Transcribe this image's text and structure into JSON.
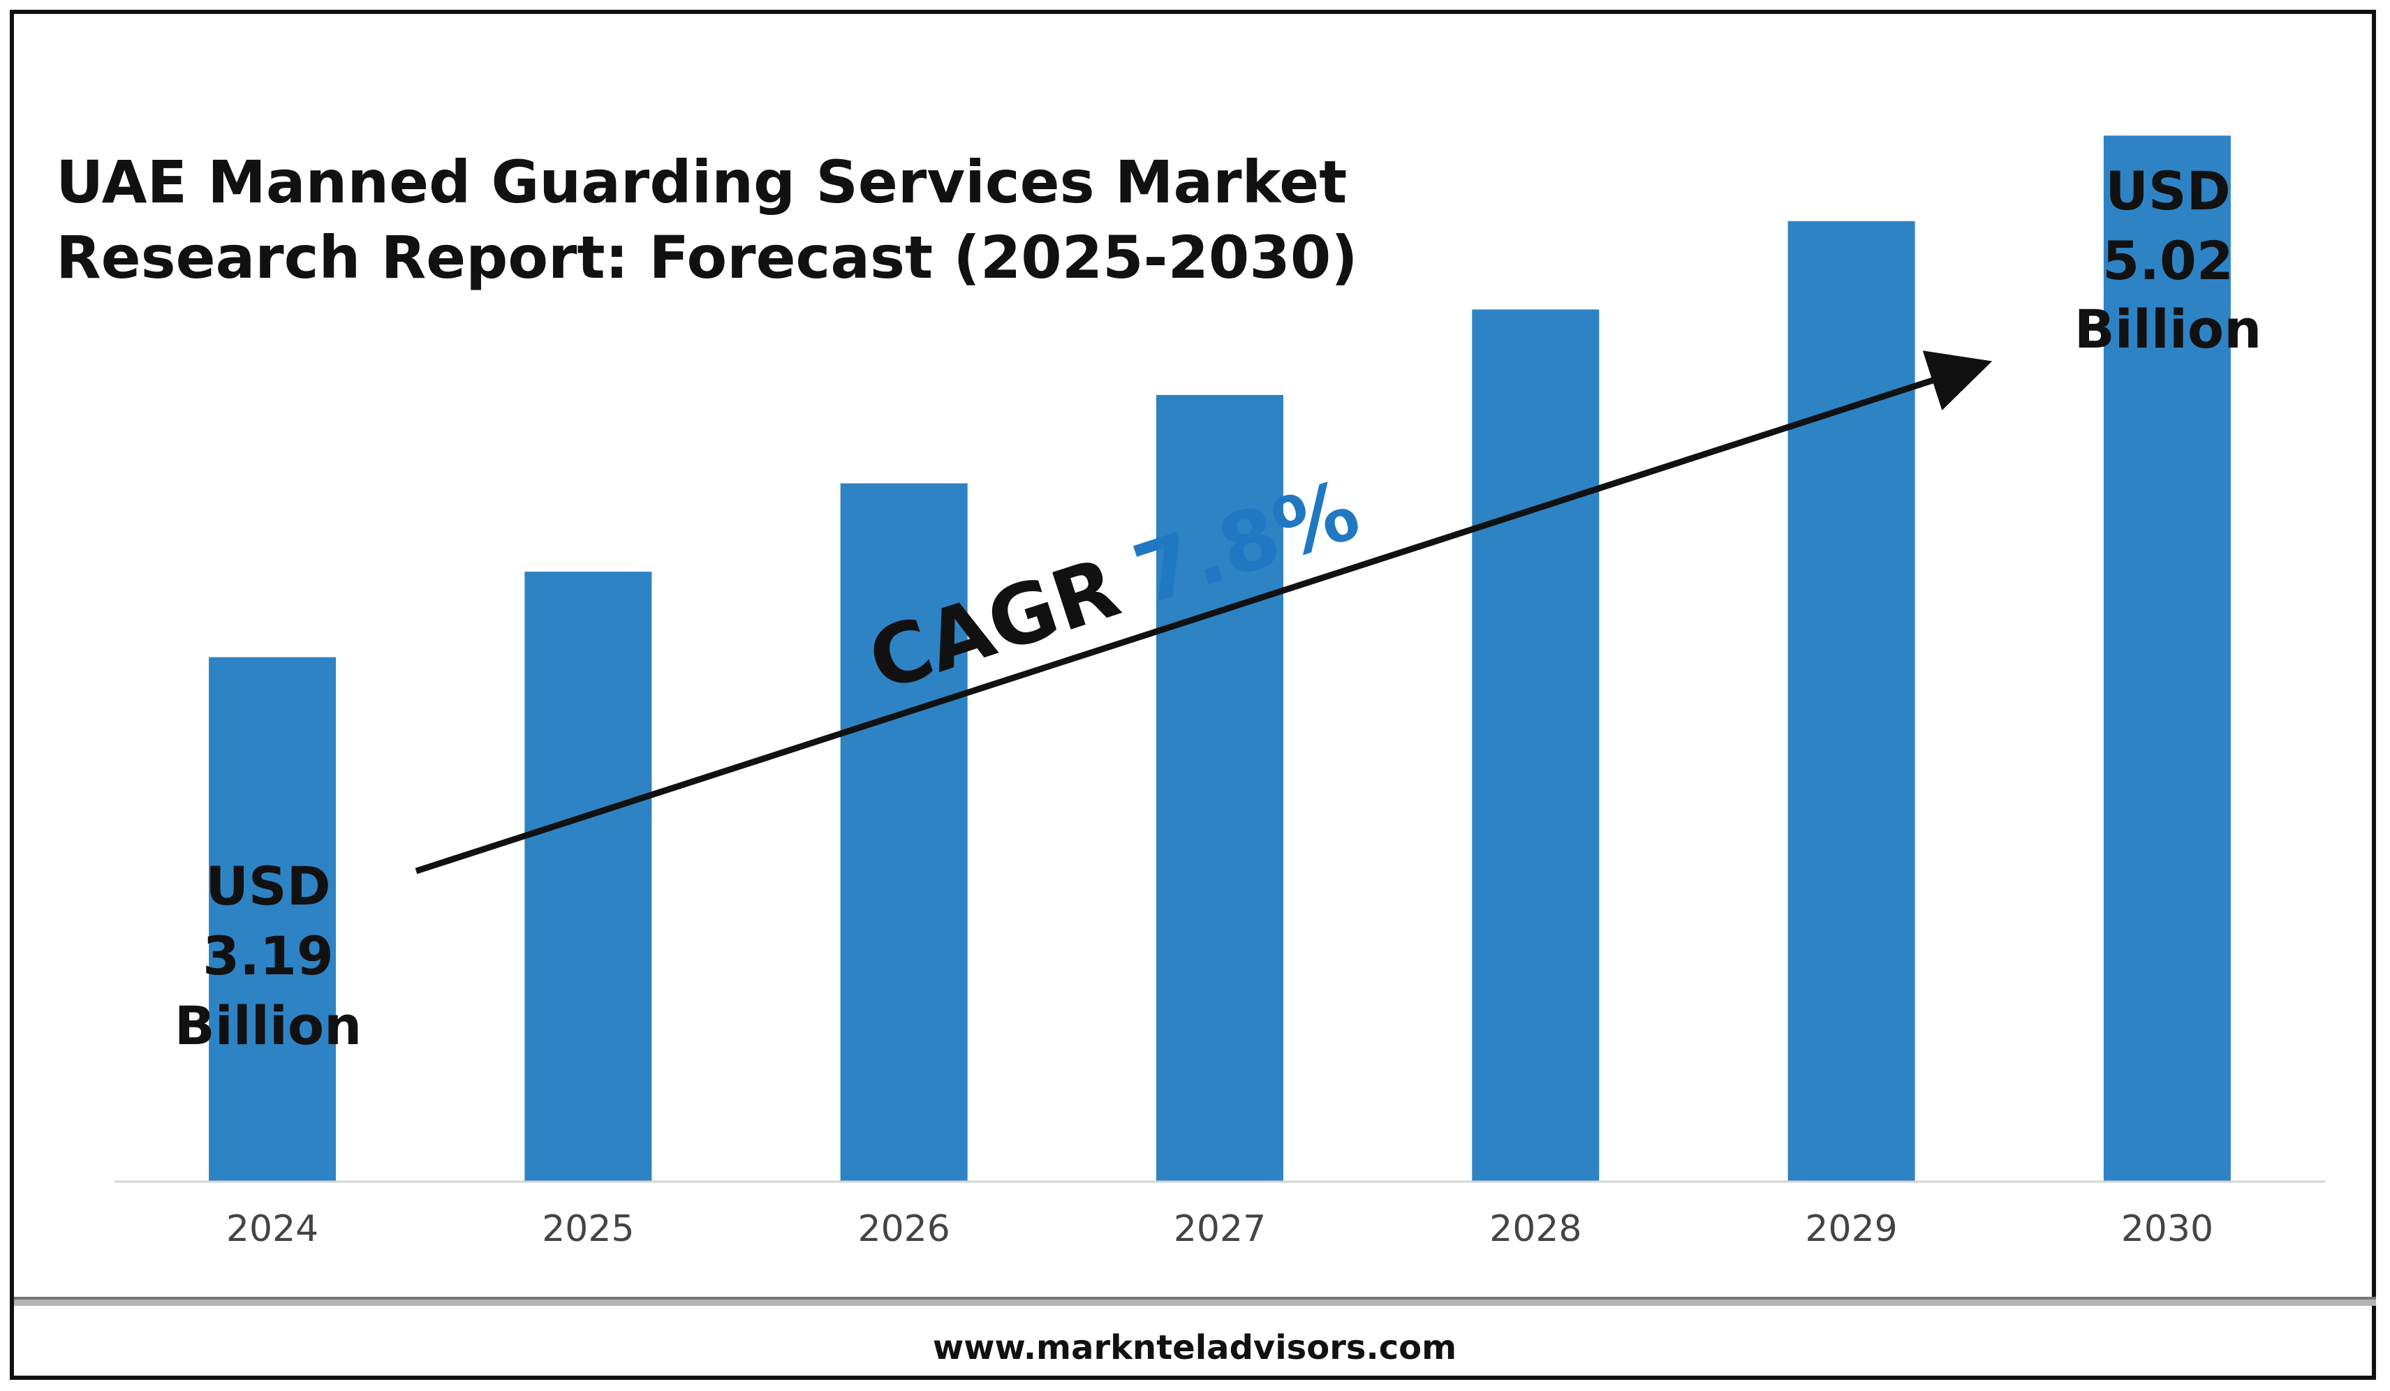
{
  "title_lines": [
    "UAE Manned Guarding Services Market",
    "Research Report: Forecast (2025-2030)"
  ],
  "colors": {
    "bar": "#2E83C4",
    "cagr_value": "#1F78C1",
    "axis": "#d4d4d4",
    "arrow": "#111111"
  },
  "cagr": {
    "label": "CAGR",
    "value": "7.8%"
  },
  "start_label": [
    "USD",
    "3.19",
    "Billion"
  ],
  "end_label": [
    "USD",
    "5.02",
    "Billion"
  ],
  "footer": {
    "url": "www.marknteladvisors.com"
  },
  "chart_data": {
    "type": "bar",
    "title": "UAE Manned Guarding Services Market Research Report: Forecast (2025-2030)",
    "categories": [
      "2024",
      "2025",
      "2026",
      "2027",
      "2028",
      "2029",
      "2030"
    ],
    "values": [
      3.19,
      3.49,
      3.8,
      4.11,
      4.41,
      4.72,
      5.02
    ],
    "unit": "USD Billion",
    "xlabel": "",
    "ylabel": "",
    "ylim": [
      1.35,
      5.3
    ],
    "grid": false,
    "legend": "none",
    "annotations": [
      "CAGR 7.8%",
      "USD 3.19 Billion",
      "USD 5.02 Billion"
    ]
  }
}
